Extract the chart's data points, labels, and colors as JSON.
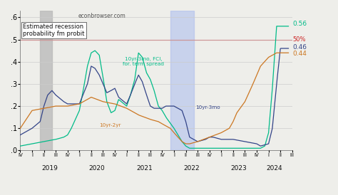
{
  "title": "econbrowser.com",
  "ylabel_box": "Estimated recession\nprobability fm probit",
  "ylim": [
    0,
    0.63
  ],
  "yticks": [
    0.0,
    0.1,
    0.2,
    0.3,
    0.4,
    0.5,
    0.6
  ],
  "ytick_labels": [
    ".0",
    ".1",
    ".2",
    ".3",
    ".4",
    ".5",
    ".6"
  ],
  "hline_y": 0.5,
  "hline_color": "#cc2222",
  "hline_label": "50%",
  "gray_band": [
    2019.17,
    2019.42
  ],
  "blue_band": [
    2021.92,
    2022.42
  ],
  "annotation_green": "10yr-3mo, FCI,\nfor. term spread",
  "annotation_blue": "10yr-3mo",
  "annotation_orange": "10yr-2yr",
  "end_label_green": "0.56",
  "end_label_darkblue": "0.46",
  "end_label_orange": "0.44",
  "color_green": "#00bb88",
  "color_darkblue": "#334488",
  "color_orange": "#cc7722",
  "background": "#eeeeea",
  "plot_bg": "#eeeeea"
}
